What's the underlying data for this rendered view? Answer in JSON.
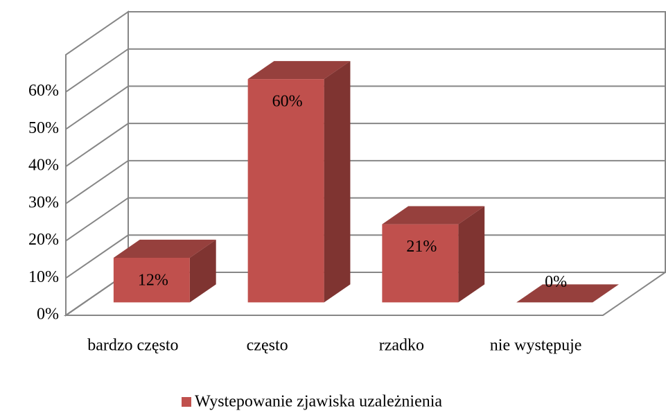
{
  "chart_data": {
    "type": "bar3d",
    "categories": [
      "bardzo często",
      "często",
      "rzadko",
      "nie występuje"
    ],
    "series": [
      {
        "name": "Wystepowanie zjawiska uzależnienia",
        "color": "#c0504d",
        "values": [
          12,
          60,
          21,
          0
        ],
        "value_labels": [
          "12%",
          "60%",
          "21%",
          "0%"
        ]
      }
    ],
    "ylim": [
      0,
      70
    ],
    "yticks": [
      {
        "value": 0,
        "label": "0%"
      },
      {
        "value": 10,
        "label": "10%"
      },
      {
        "value": 20,
        "label": "20%"
      },
      {
        "value": 30,
        "label": "30%"
      },
      {
        "value": 40,
        "label": "40%"
      },
      {
        "value": 50,
        "label": "50%"
      },
      {
        "value": 60,
        "label": "60%"
      }
    ],
    "grid": true,
    "legend": "bottom"
  }
}
